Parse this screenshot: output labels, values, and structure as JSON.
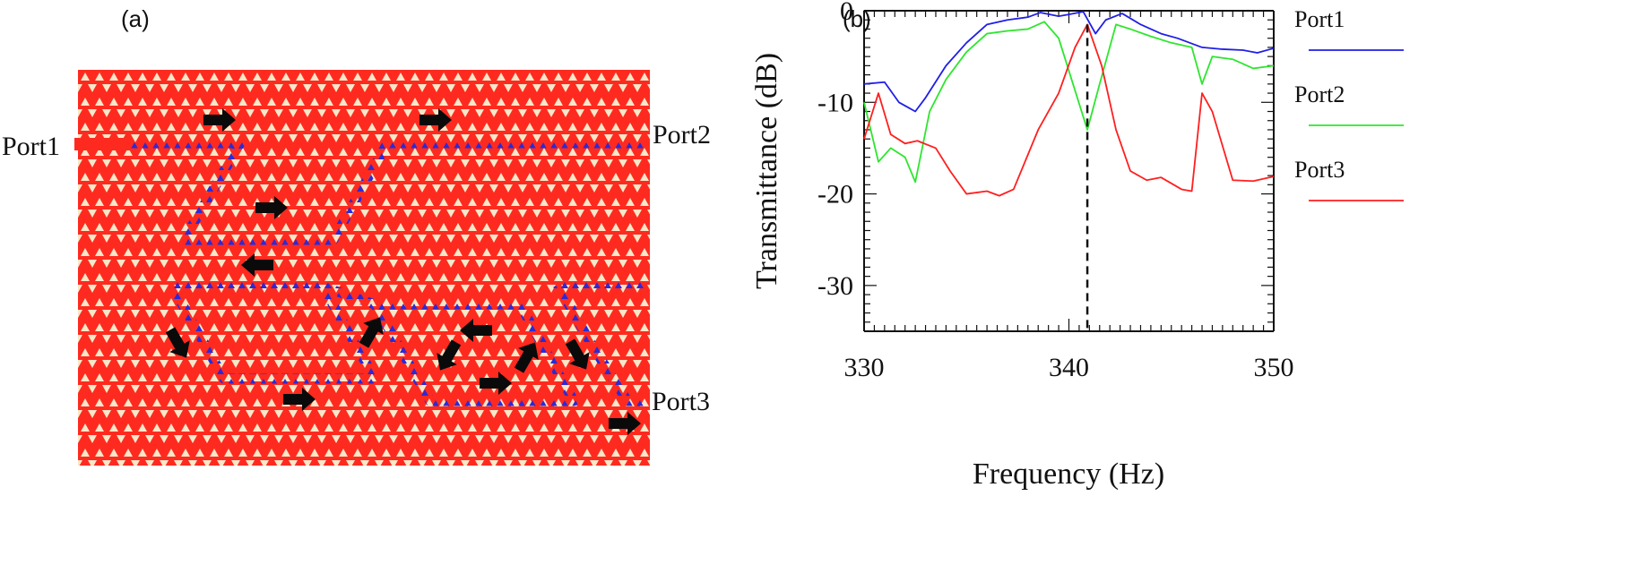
{
  "panel_labels": {
    "a": "(a)",
    "b": "(b)"
  },
  "lattice": {
    "background_color": "#ff2a1f",
    "hole_color": "#f7e7c8",
    "defect_color": "#2a2bd6",
    "ports": [
      {
        "id": "port1",
        "label": "Port1"
      },
      {
        "id": "port2",
        "label": "Port2"
      },
      {
        "id": "port3",
        "label": "Port3"
      }
    ],
    "flow_arrow_icon": "arrow-icon"
  },
  "chart_data": {
    "type": "line",
    "title": "",
    "xlabel": "Frequency (Hz)",
    "ylabel": "Transmittance (dB)",
    "xlim": [
      330,
      350
    ],
    "ylim": [
      -35,
      0
    ],
    "xticks": [
      330,
      340,
      350
    ],
    "yticks": [
      0,
      -10,
      -20,
      -30
    ],
    "grid": false,
    "legend_position": "right",
    "marker_line": {
      "x": 340.9,
      "style": "dashed"
    },
    "series": [
      {
        "name": "Port1",
        "color": "#1f1fe6",
        "x": [
          330,
          331,
          331.7,
          332.5,
          333,
          334,
          335,
          336,
          337,
          338,
          338.6,
          339.5,
          340,
          340.7,
          341.3,
          341.8,
          342.6,
          343.5,
          344.5,
          345.3,
          346.5,
          347.5,
          348.5,
          349.2,
          350
        ],
        "y": [
          -8,
          -7.8,
          -10,
          -11,
          -9.5,
          -6,
          -3.5,
          -1.5,
          -1,
          -0.7,
          -0.2,
          -0.6,
          -0.4,
          -0.1,
          -2.5,
          -1,
          -0.3,
          -1.5,
          -2.5,
          -3,
          -4,
          -4.2,
          -4.3,
          -4.6,
          -4.1
        ]
      },
      {
        "name": "Port2",
        "color": "#2ee62e",
        "x": [
          330,
          330.7,
          331.3,
          332,
          332.5,
          333.2,
          334,
          335,
          336,
          337,
          338,
          338.8,
          339.5,
          340.2,
          340.9,
          341.5,
          342.3,
          343,
          344,
          345,
          346,
          346.5,
          347,
          348,
          349,
          350
        ],
        "y": [
          -10,
          -16.5,
          -15,
          -16,
          -18.7,
          -11,
          -7.5,
          -4.5,
          -2.5,
          -2.2,
          -2,
          -1.2,
          -3,
          -8,
          -13,
          -8,
          -1.5,
          -2,
          -2.8,
          -3.5,
          -4,
          -8,
          -5,
          -5.3,
          -6.3,
          -6
        ]
      },
      {
        "name": "Port3",
        "color": "#ff1f1f",
        "x": [
          330,
          330.7,
          331.3,
          332,
          332.6,
          333.5,
          334.2,
          335,
          336,
          336.6,
          337.3,
          338.5,
          339.5,
          340.3,
          340.9,
          341.6,
          342.3,
          343,
          343.8,
          344.5,
          345.5,
          346,
          346.5,
          347,
          348,
          349,
          350
        ],
        "y": [
          -14,
          -9,
          -13.5,
          -14.5,
          -14.2,
          -15,
          -17.5,
          -20,
          -19.7,
          -20.2,
          -19.5,
          -13,
          -9,
          -4,
          -1.5,
          -6,
          -13,
          -17.5,
          -18.5,
          -18.2,
          -19.5,
          -19.7,
          -9,
          -11,
          -18.5,
          -18.6,
          -18.1
        ]
      }
    ]
  }
}
